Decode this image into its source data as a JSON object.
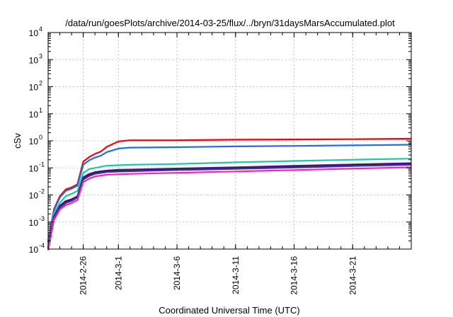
{
  "chart_data": {
    "type": "line",
    "title": "/data/run/goesPlots/archive/2014-03-25/flux/../bryn/31daysMarsAccumulated.plot",
    "xlabel": "Coordinated Universal Time (UTC)",
    "ylabel": "cSv",
    "yscale": "log",
    "ylim": [
      0.0001,
      10000
    ],
    "xlim": [
      "2014-02-23",
      "2014-03-26"
    ],
    "grid": true,
    "y_ticks": [
      {
        "base": "10",
        "exp": "-4"
      },
      {
        "base": "10",
        "exp": "-3"
      },
      {
        "base": "10",
        "exp": "-2"
      },
      {
        "base": "10",
        "exp": "-1"
      },
      {
        "base": "10",
        "exp": "0"
      },
      {
        "base": "10",
        "exp": "1"
      },
      {
        "base": "10",
        "exp": "2"
      },
      {
        "base": "10",
        "exp": "3"
      },
      {
        "base": "10",
        "exp": "4"
      }
    ],
    "x_tick_labels": [
      "2014-2-26",
      "2014-3-1",
      "2014-3-6",
      "2014-3-11",
      "2014-3-16",
      "2014-3-21"
    ],
    "x_tick_dates": [
      "2014-02-26",
      "2014-03-01",
      "2014-03-06",
      "2014-03-11",
      "2014-03-16",
      "2014-03-21"
    ],
    "series": [
      {
        "color": "#ff0000",
        "x": [
          "2014-02-23",
          "2014-02-23T12:00",
          "2014-02-24",
          "2014-02-24T12:00",
          "2014-02-25",
          "2014-02-25T12:00",
          "2014-02-26",
          "2014-02-26T12:00",
          "2014-02-27",
          "2014-02-27T12:00",
          "2014-02-28",
          "2014-03-01",
          "2014-03-02",
          "2014-03-06",
          "2014-03-11",
          "2014-03-16",
          "2014-03-21",
          "2014-03-26"
        ],
        "y": [
          0.0002,
          0.003,
          0.009,
          0.016,
          0.019,
          0.025,
          0.17,
          0.25,
          0.33,
          0.4,
          0.6,
          0.95,
          1.05,
          1.05,
          1.1,
          1.12,
          1.15,
          1.2
        ]
      },
      {
        "color": "#1e6fe6",
        "x": [
          "2014-02-23",
          "2014-02-23T12:00",
          "2014-02-24",
          "2014-02-24T12:00",
          "2014-02-25",
          "2014-02-25T12:00",
          "2014-02-26",
          "2014-02-26T12:00",
          "2014-02-27",
          "2014-02-27T12:00",
          "2014-02-28",
          "2014-03-01",
          "2014-03-02",
          "2014-03-06",
          "2014-03-11",
          "2014-03-16",
          "2014-03-21",
          "2014-03-26"
        ],
        "y": [
          0.00018,
          0.0027,
          0.008,
          0.014,
          0.017,
          0.022,
          0.13,
          0.19,
          0.24,
          0.28,
          0.38,
          0.52,
          0.56,
          0.58,
          0.62,
          0.65,
          0.68,
          0.72
        ]
      },
      {
        "color": "#1fc8a0",
        "x": [
          "2014-02-23",
          "2014-02-23T12:00",
          "2014-02-24",
          "2014-02-24T12:00",
          "2014-02-25",
          "2014-02-25T12:00",
          "2014-02-26",
          "2014-02-26T12:00",
          "2014-02-27",
          "2014-02-27T12:00",
          "2014-02-28",
          "2014-03-01",
          "2014-03-02",
          "2014-03-06",
          "2014-03-11",
          "2014-03-16",
          "2014-03-21",
          "2014-03-26"
        ],
        "y": [
          0.00015,
          0.002,
          0.005,
          0.009,
          0.011,
          0.014,
          0.065,
          0.09,
          0.1,
          0.11,
          0.12,
          0.125,
          0.13,
          0.14,
          0.16,
          0.18,
          0.2,
          0.22
        ]
      },
      {
        "color": "#6a1aa0",
        "x": [
          "2014-02-23",
          "2014-02-23T12:00",
          "2014-02-24",
          "2014-02-24T12:00",
          "2014-02-25",
          "2014-02-25T12:00",
          "2014-02-26",
          "2014-02-26T12:00",
          "2014-02-27",
          "2014-02-27T12:00",
          "2014-02-28",
          "2014-03-01",
          "2014-03-02",
          "2014-03-06",
          "2014-03-11",
          "2014-03-16",
          "2014-03-21",
          "2014-03-26"
        ],
        "y": [
          0.00012,
          0.0016,
          0.004,
          0.006,
          0.007,
          0.009,
          0.045,
          0.06,
          0.07,
          0.075,
          0.08,
          0.085,
          0.087,
          0.095,
          0.105,
          0.12,
          0.135,
          0.15
        ]
      },
      {
        "color": "#202020",
        "x": [
          "2014-02-23",
          "2014-02-23T12:00",
          "2014-02-24",
          "2014-02-24T12:00",
          "2014-02-25",
          "2014-02-25T12:00",
          "2014-02-26",
          "2014-02-26T12:00",
          "2014-02-27",
          "2014-02-27T12:00",
          "2014-02-28",
          "2014-03-01",
          "2014-03-02",
          "2014-03-06",
          "2014-03-11",
          "2014-03-16",
          "2014-03-21",
          "2014-03-26"
        ],
        "y": [
          0.00011,
          0.0015,
          0.0037,
          0.0055,
          0.0065,
          0.0085,
          0.04,
          0.055,
          0.065,
          0.07,
          0.075,
          0.078,
          0.08,
          0.088,
          0.098,
          0.11,
          0.125,
          0.14
        ]
      },
      {
        "color": "#3a2fb8",
        "x": [
          "2014-02-23",
          "2014-02-23T12:00",
          "2014-02-24",
          "2014-02-24T12:00",
          "2014-02-25",
          "2014-02-25T12:00",
          "2014-02-26",
          "2014-02-26T12:00",
          "2014-02-27",
          "2014-02-27T12:00",
          "2014-02-28",
          "2014-03-01",
          "2014-03-02",
          "2014-03-06",
          "2014-03-11",
          "2014-03-16",
          "2014-03-21",
          "2014-03-26"
        ],
        "y": [
          0.0001,
          0.0014,
          0.0034,
          0.005,
          0.006,
          0.008,
          0.037,
          0.05,
          0.06,
          0.065,
          0.07,
          0.073,
          0.075,
          0.083,
          0.092,
          0.103,
          0.117,
          0.13
        ]
      },
      {
        "color": "#ff1fb0",
        "x": [
          "2014-02-23",
          "2014-02-23T12:00",
          "2014-02-24",
          "2014-02-24T12:00",
          "2014-02-25",
          "2014-02-25T12:00",
          "2014-02-26",
          "2014-02-26T12:00",
          "2014-02-27",
          "2014-02-27T12:00",
          "2014-02-28",
          "2014-03-01",
          "2014-03-02",
          "2014-03-06",
          "2014-03-11",
          "2014-03-16",
          "2014-03-21",
          "2014-03-26"
        ],
        "y": [
          9e-05,
          0.0012,
          0.0029,
          0.0042,
          0.005,
          0.0065,
          0.03,
          0.04,
          0.048,
          0.052,
          0.056,
          0.058,
          0.06,
          0.066,
          0.074,
          0.083,
          0.094,
          0.105
        ]
      }
    ]
  }
}
